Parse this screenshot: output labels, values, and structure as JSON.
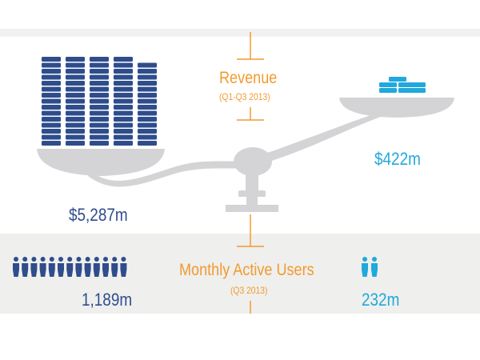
{
  "revenue": {
    "title": "Revenue",
    "period": "(Q1-Q3 2013)",
    "left_value": "$5,287m",
    "right_value": "$422m",
    "left_amount_m": 5287,
    "right_amount_m": 422
  },
  "users": {
    "title": "Monthly Active Users",
    "period": "(Q3 2013)",
    "left_value": "1,189m",
    "right_value": "232m",
    "left_amount_m": 1189,
    "right_amount_m": 232
  },
  "colors": {
    "navy": "#2f4d8c",
    "cyan": "#21a8dc",
    "orange": "#f29a2e",
    "scale_gray": "#d4d4d6",
    "band_gray": "#efefed"
  },
  "icons": {
    "coins": "coin-stack-icon",
    "users": "person-icon"
  }
}
